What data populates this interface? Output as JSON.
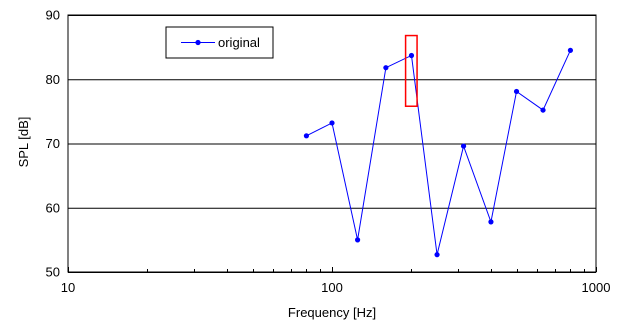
{
  "chart_data": {
    "type": "line",
    "xscale": "log",
    "xlim": [
      10,
      1000
    ],
    "ylim": [
      50,
      90
    ],
    "xlabel": "Frequency [Hz]",
    "ylabel": "SPL [dB]",
    "x_ticks": [
      10,
      100,
      1000
    ],
    "x_tick_labels": [
      "10",
      "100",
      "1000"
    ],
    "y_ticks": [
      50,
      60,
      70,
      80,
      90
    ],
    "y_tick_labels": [
      "50",
      "60",
      "70",
      "80",
      "90"
    ],
    "grid": "horizontal",
    "legend_position": "top-left",
    "series": [
      {
        "name": "original",
        "color": "#0000ff",
        "x": [
          80,
          100,
          125,
          160,
          200,
          250,
          315,
          400,
          500,
          630,
          800
        ],
        "y": [
          71.2,
          73.2,
          55.0,
          81.8,
          83.7,
          52.7,
          69.6,
          57.8,
          78.1,
          75.2,
          84.5
        ]
      }
    ],
    "annotations": [
      {
        "type": "rectangle",
        "color": "#ff0000",
        "x": [
          190,
          210
        ],
        "y": [
          75.8,
          86.8
        ]
      }
    ]
  }
}
